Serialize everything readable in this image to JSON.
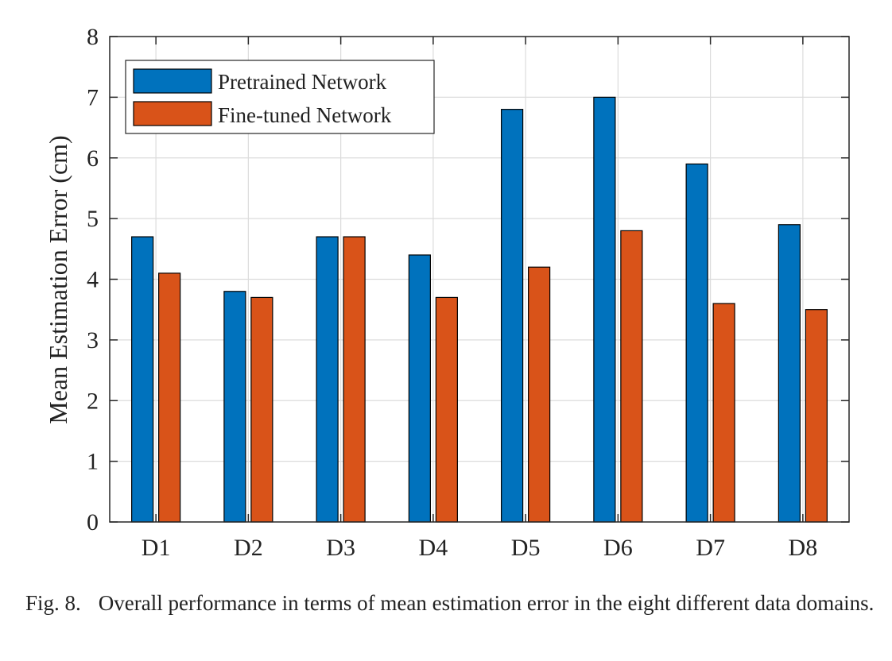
{
  "chart_data": {
    "type": "bar",
    "categories": [
      "D1",
      "D2",
      "D3",
      "D4",
      "D5",
      "D6",
      "D7",
      "D8"
    ],
    "series": [
      {
        "name": "Pretrained Network",
        "color": "#0072BD",
        "values": [
          4.7,
          3.8,
          4.7,
          4.4,
          6.8,
          7.0,
          5.9,
          4.9
        ]
      },
      {
        "name": "Fine-tuned Network",
        "color": "#D95319",
        "values": [
          4.1,
          3.7,
          4.7,
          3.7,
          4.2,
          4.8,
          3.6,
          3.5
        ]
      }
    ],
    "ylabel": "Mean Estimation Error (cm)",
    "xlabel": "",
    "ylim": [
      0,
      8
    ],
    "yticks": [
      0,
      1,
      2,
      3,
      4,
      5,
      6,
      7,
      8
    ],
    "grid": true,
    "legend": "top-left"
  },
  "caption": {
    "label": "Fig. 8.",
    "text": "Overall performance in terms of mean estimation error in the eight different data domains."
  }
}
